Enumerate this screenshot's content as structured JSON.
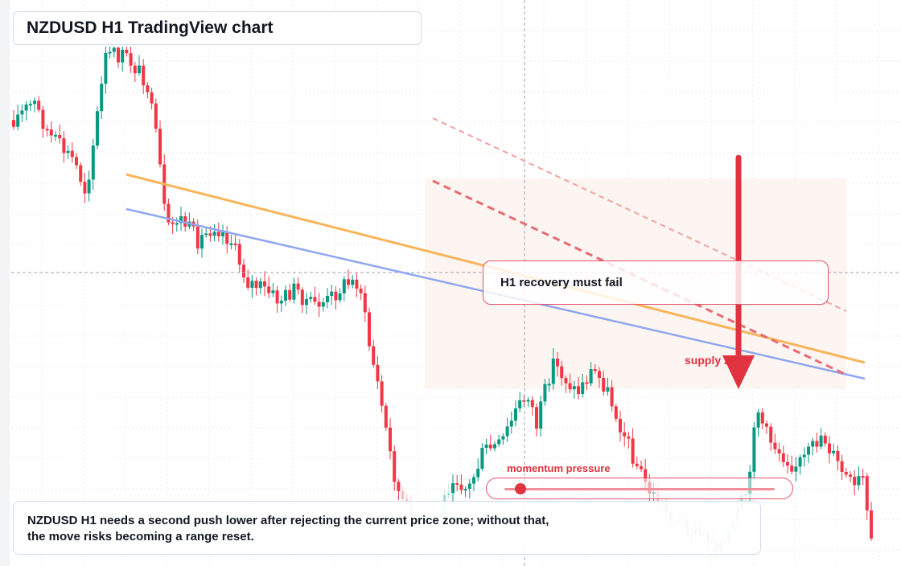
{
  "page_title": "NZDUSD H1 TradingView chart",
  "callout_text": "H1 recovery must fail",
  "zone_label": "supply zone",
  "meter": {
    "label": "momentum pressure",
    "level": 0.06
  },
  "commentary": [
    "NZDUSD H1 needs a second push lower after rejecting the current price zone; without that,",
    "the move risks becoming a range reset."
  ],
  "colors": {
    "up_candle": "#089981",
    "down_candle": "#f23645",
    "orange_trendline": "#f7b55c",
    "blue_trendline": "#8fa7ee",
    "bearish_arrow": "#e0323f",
    "accent_red": "#e4506a"
  },
  "icons": {
    "arrow": "down-arrow-icon"
  }
}
